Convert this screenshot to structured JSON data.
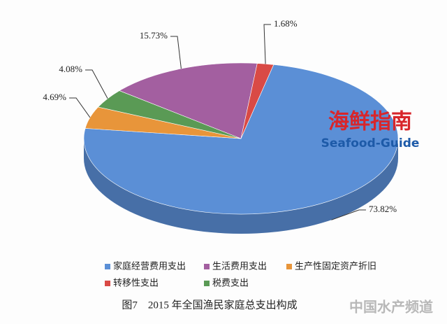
{
  "chart_data": {
    "type": "pie",
    "title": "图7　2015 年全国渔民家庭总支出构成",
    "categories": [
      "家庭经营费用支出",
      "生活费用支出",
      "生产性固定资产折旧",
      "转移性支出",
      "税费支出"
    ],
    "values": [
      73.82,
      15.73,
      4.69,
      1.68,
      4.08
    ],
    "value_labels": [
      "73.82%",
      "15.73%",
      "4.69%",
      "1.68%",
      "4.08%"
    ],
    "colors": [
      "#5b8fd6",
      "#a35fa0",
      "#e8953a",
      "#d94a45",
      "#5a9a55"
    ],
    "legend": "bottom",
    "watermark": {
      "title": "海鲜指南",
      "subtitle": "Seafood-Guide",
      "source": "中国水产频道"
    }
  }
}
